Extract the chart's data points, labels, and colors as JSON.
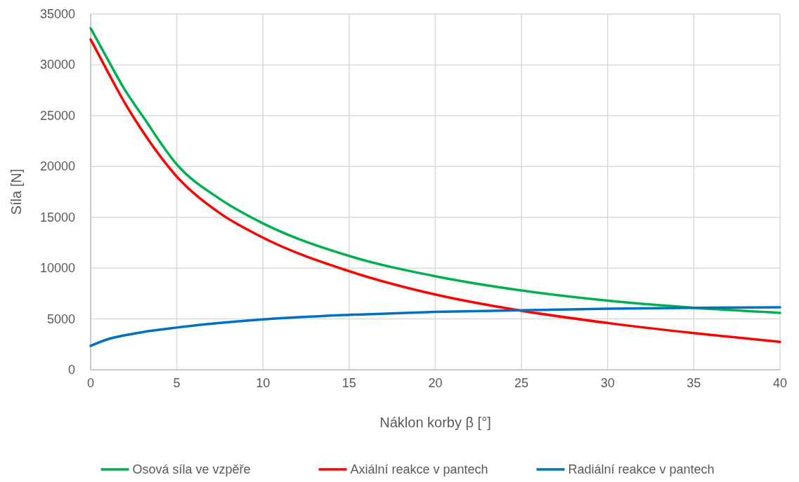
{
  "chart_data": {
    "type": "line",
    "xlabel": "Náklon korby β [°]",
    "ylabel": "Síla [N]",
    "x": [
      0,
      1,
      2,
      3,
      5,
      7.5,
      10,
      15,
      20,
      25,
      30,
      35,
      40
    ],
    "series": [
      {
        "name": "Osová síla ve vzpěře",
        "color": "#00b050",
        "values": [
          33600,
          30500,
          27500,
          25000,
          20200,
          16800,
          14400,
          11200,
          9200,
          7800,
          6800,
          6100,
          5600
        ]
      },
      {
        "name": "Axiální reakce v pantech",
        "color": "#ff0000",
        "values": [
          32500,
          29300,
          26200,
          23500,
          19000,
          15400,
          13000,
          9700,
          7400,
          5800,
          4600,
          3600,
          2750
        ]
      },
      {
        "name": "Radiální reakce v pantech",
        "color": "#0070c0",
        "values": [
          2350,
          3000,
          3400,
          3700,
          4150,
          4600,
          4950,
          5400,
          5700,
          5850,
          6000,
          6100,
          6150
        ]
      }
    ],
    "xlim": [
      0,
      40
    ],
    "xticks": [
      0,
      5,
      10,
      15,
      20,
      25,
      30,
      35,
      40
    ],
    "ylim": [
      0,
      35000
    ],
    "yticks": [
      0,
      5000,
      10000,
      15000,
      20000,
      25000,
      30000,
      35000
    ],
    "grid": true,
    "legend": "bottom",
    "marker": "none",
    "line_style": "solid"
  }
}
